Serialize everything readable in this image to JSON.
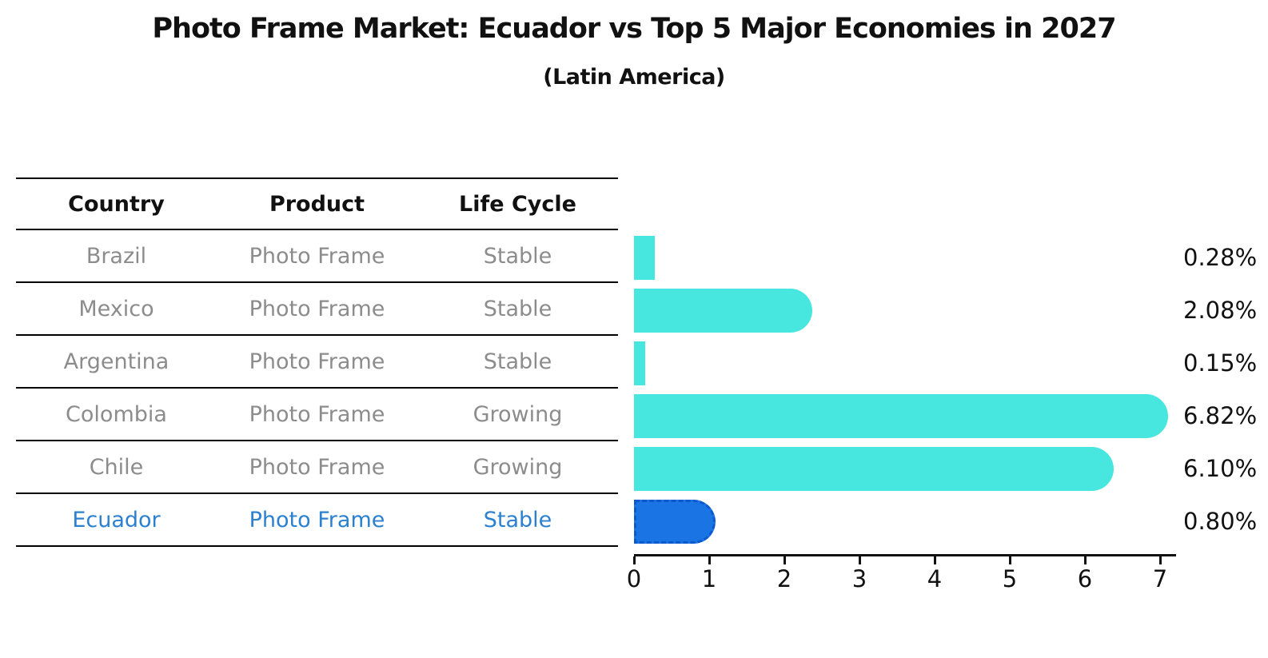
{
  "title": "Photo Frame Market: Ecuador vs Top 5 Major Economies in 2027",
  "subtitle": "(Latin America)",
  "table": {
    "headers": [
      "Country",
      "Product",
      "Life Cycle"
    ],
    "rows": [
      {
        "country": "Brazil",
        "product": "Photo Frame",
        "life_cycle": "Stable",
        "highlight": false
      },
      {
        "country": "Mexico",
        "product": "Photo Frame",
        "life_cycle": "Stable",
        "highlight": false
      },
      {
        "country": "Argentina",
        "product": "Photo Frame",
        "life_cycle": "Stable",
        "highlight": false
      },
      {
        "country": "Colombia",
        "product": "Photo Frame",
        "life_cycle": "Growing",
        "highlight": false
      },
      {
        "country": "Chile",
        "product": "Photo Frame",
        "life_cycle": "Growing",
        "highlight": false
      },
      {
        "country": "Ecuador",
        "product": "Photo Frame",
        "life_cycle": "Stable",
        "highlight": true
      }
    ]
  },
  "chart_data": {
    "type": "bar",
    "orientation": "horizontal",
    "title": "Photo Frame Market: Ecuador vs Top 5 Major Economies in 2027",
    "subtitle": "(Latin America)",
    "categories": [
      "Brazil",
      "Mexico",
      "Argentina",
      "Colombia",
      "Chile",
      "Ecuador"
    ],
    "values": [
      0.28,
      2.08,
      0.15,
      6.82,
      6.1,
      0.8
    ],
    "value_labels": [
      "0.28%",
      "2.08%",
      "0.15%",
      "6.82%",
      "6.10%",
      "0.80%"
    ],
    "xlabel": "",
    "ylabel": "",
    "xlim": [
      0,
      7
    ],
    "x_ticks": [
      "0",
      "1",
      "2",
      "3",
      "4",
      "5",
      "6",
      "7"
    ],
    "grid": false,
    "legend": "none",
    "highlight_index": 5,
    "colors": {
      "bar": "#47e6df",
      "highlight_bar": "#1b74e4",
      "highlight_border": "#0b59cc",
      "highlight_text": "#2b80d0",
      "row_text": "#8c8c8c",
      "value_text": "#111111",
      "axis": "#111111"
    }
  }
}
